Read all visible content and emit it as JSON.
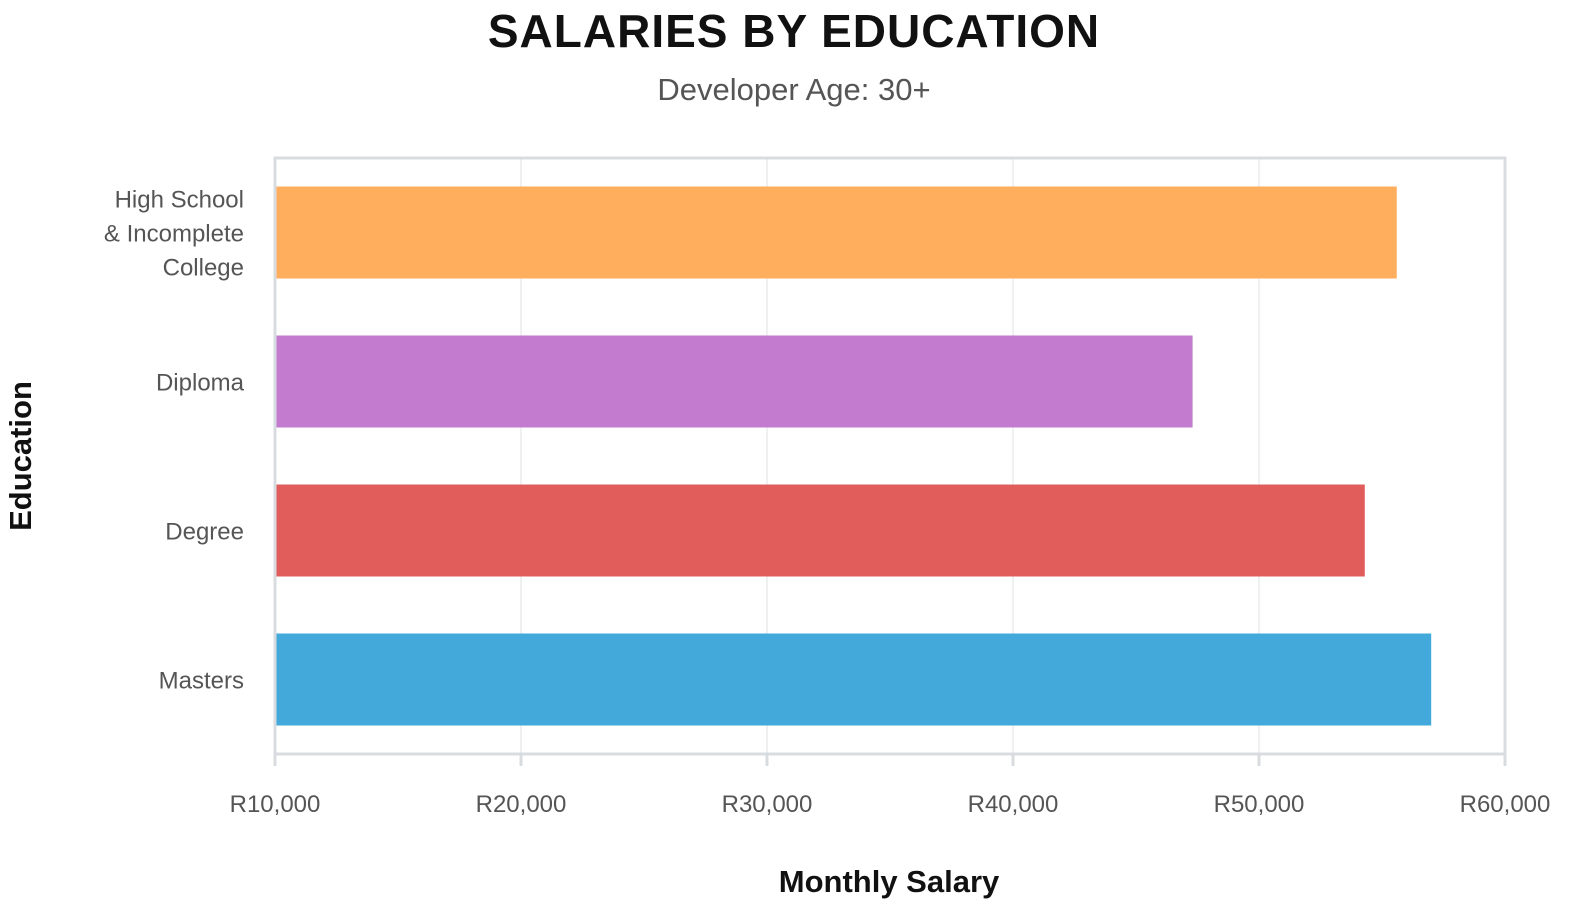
{
  "chart_data": {
    "type": "bar",
    "orientation": "horizontal",
    "title": "SALARIES BY EDUCATION",
    "subtitle": "Developer Age: 30+",
    "xlabel": "Monthly Salary",
    "ylabel": "Education",
    "xlim": [
      10000,
      60000
    ],
    "x_ticks": [
      10000,
      20000,
      30000,
      40000,
      50000,
      60000
    ],
    "x_tick_labels": [
      "R10,000",
      "R20,000",
      "R30,000",
      "R40,000",
      "R50,000",
      "R60,000"
    ],
    "categories": [
      [
        "High School",
        "& Incomplete",
        "College"
      ],
      [
        "Diploma"
      ],
      [
        "Degree"
      ],
      [
        "Masters"
      ]
    ],
    "values": [
      55600,
      47300,
      54300,
      57000
    ],
    "colors": [
      "#FFAE5E",
      "#C27BCE",
      "#E15D5B",
      "#42A9DA"
    ],
    "grid": true
  }
}
